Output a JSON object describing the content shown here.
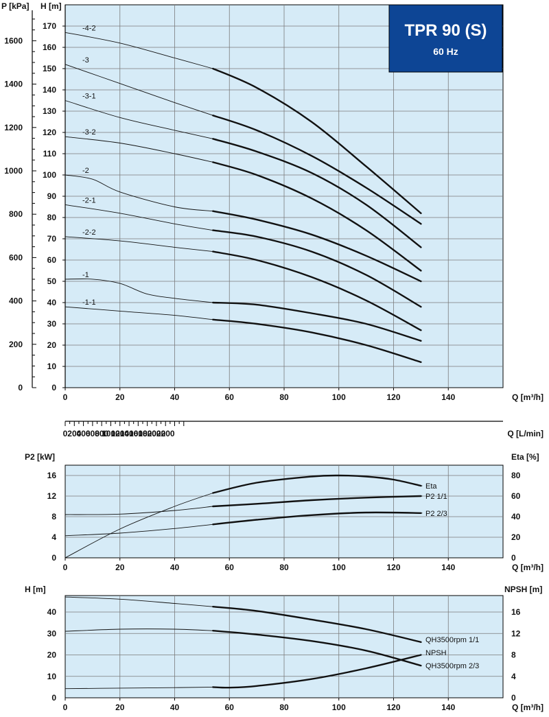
{
  "banner": {
    "title": "TPR 90 (S)",
    "subtitle": "60 Hz"
  },
  "chart_data": [
    {
      "type": "line",
      "panel": "head",
      "y_label": "H [m]",
      "y2_label": "P [kPa]",
      "x_label": "Q [m³/h]",
      "x2_label": "Q [L/min]",
      "xlim": [
        0,
        160
      ],
      "ylim": [
        0,
        180
      ],
      "x_ticks": [
        0,
        20,
        40,
        60,
        80,
        100,
        120,
        140
      ],
      "y_ticks": [
        0,
        10,
        20,
        30,
        40,
        50,
        60,
        70,
        80,
        90,
        100,
        110,
        120,
        130,
        140,
        150,
        160,
        170
      ],
      "p_ticks": [
        0,
        200,
        400,
        600,
        800,
        1000,
        1200,
        1400,
        1600
      ],
      "lmin_ticks": [
        0,
        200,
        400,
        600,
        800,
        1000,
        1200,
        1400,
        1600,
        1800,
        2000,
        2200
      ],
      "grid": true,
      "series": [
        {
          "name": "-4-2",
          "x": [
            0,
            20,
            40,
            54,
            70,
            90,
            110,
            130
          ],
          "y": [
            167,
            162,
            155,
            150,
            141,
            125,
            104,
            82
          ]
        },
        {
          "name": "-3",
          "x": [
            0,
            20,
            40,
            54,
            70,
            90,
            110,
            130
          ],
          "y": [
            152,
            143,
            134,
            128,
            121,
            109,
            94,
            77
          ]
        },
        {
          "name": "-3-1",
          "x": [
            0,
            20,
            40,
            54,
            70,
            90,
            110,
            130
          ],
          "y": [
            135,
            127,
            121,
            117,
            111,
            101,
            86,
            66
          ]
        },
        {
          "name": "-3-2",
          "x": [
            0,
            20,
            40,
            54,
            70,
            90,
            110,
            130
          ],
          "y": [
            118,
            115,
            110,
            106,
            100,
            89,
            74,
            55
          ]
        },
        {
          "name": "-2",
          "x": [
            0,
            10,
            20,
            40,
            54,
            70,
            90,
            110,
            130
          ],
          "y": [
            100,
            98,
            92,
            85,
            83,
            79,
            72,
            62,
            50
          ]
        },
        {
          "name": "-2-1",
          "x": [
            0,
            20,
            40,
            54,
            70,
            90,
            110,
            130
          ],
          "y": [
            86,
            82,
            77,
            74,
            71,
            64,
            53,
            38
          ]
        },
        {
          "name": "-2-2",
          "x": [
            0,
            20,
            40,
            54,
            70,
            90,
            110,
            130
          ],
          "y": [
            71,
            69,
            66,
            64,
            60,
            52,
            41,
            27
          ]
        },
        {
          "name": "-1",
          "x": [
            0,
            10,
            20,
            30,
            40,
            54,
            70,
            90,
            110,
            130
          ],
          "y": [
            51,
            51,
            49,
            44,
            42,
            40,
            39,
            35,
            30,
            22
          ]
        },
        {
          "name": "-1-1",
          "x": [
            0,
            20,
            40,
            54,
            70,
            90,
            110,
            130
          ],
          "y": [
            38,
            36,
            34,
            32,
            30,
            26,
            20,
            12
          ]
        }
      ]
    },
    {
      "type": "line",
      "panel": "power",
      "y_label": "P2 [kW]",
      "y2_label": "Eta [%]",
      "x_label": "Q [m³/h]",
      "xlim": [
        0,
        160
      ],
      "ylim": [
        0,
        18
      ],
      "y2lim": [
        0,
        90
      ],
      "x_ticks": [
        0,
        20,
        40,
        60,
        80,
        100,
        120,
        140
      ],
      "y_ticks": [
        0,
        4,
        8,
        12,
        16
      ],
      "y2_ticks": [
        0,
        20,
        40,
        60,
        80
      ],
      "grid": true,
      "series": [
        {
          "name": "Eta",
          "axis": "right",
          "x": [
            0,
            20,
            40,
            54,
            70,
            90,
            100,
            110,
            120,
            130
          ],
          "y": [
            0,
            28,
            50,
            63,
            73,
            79,
            80,
            79,
            76,
            70
          ]
        },
        {
          "name": "P2 1/1",
          "axis": "left",
          "x": [
            0,
            20,
            40,
            54,
            70,
            90,
            110,
            130
          ],
          "y": [
            8.4,
            8.5,
            9.2,
            10.0,
            10.5,
            11.2,
            11.7,
            12.0
          ]
        },
        {
          "name": "P2 2/3",
          "axis": "left",
          "x": [
            0,
            20,
            40,
            54,
            70,
            90,
            110,
            130
          ],
          "y": [
            4.3,
            4.8,
            5.7,
            6.5,
            7.4,
            8.3,
            8.8,
            8.7
          ]
        }
      ]
    },
    {
      "type": "line",
      "panel": "npsh",
      "y_label": "H [m]",
      "y2_label": "NPSH [m]",
      "x_label": "Q [m³/h]",
      "xlim": [
        0,
        160
      ],
      "ylim": [
        0,
        48
      ],
      "y2lim": [
        0,
        19.2
      ],
      "x_ticks": [
        0,
        20,
        40,
        60,
        80,
        100,
        120,
        140
      ],
      "y_ticks": [
        0,
        10,
        20,
        30,
        40
      ],
      "y2_ticks": [
        0,
        4,
        8,
        12,
        16
      ],
      "grid": true,
      "series": [
        {
          "name": "QH3500rpm 1/1",
          "axis": "left",
          "x": [
            0,
            20,
            40,
            54,
            70,
            90,
            110,
            130
          ],
          "y": [
            47,
            46,
            44,
            42.5,
            40.5,
            36.5,
            32,
            26
          ]
        },
        {
          "name": "QH3500rpm 2/3",
          "axis": "left",
          "x": [
            0,
            20,
            40,
            54,
            70,
            90,
            110,
            130
          ],
          "y": [
            31,
            32,
            32,
            31.3,
            29.5,
            26.5,
            22,
            15
          ]
        },
        {
          "name": "NPSH",
          "axis": "right",
          "x": [
            0,
            20,
            40,
            54,
            60,
            70,
            90,
            110,
            130
          ],
          "y": [
            1.7,
            1.8,
            1.9,
            2.0,
            1.9,
            2.2,
            3.5,
            5.5,
            8.0
          ]
        }
      ]
    }
  ]
}
